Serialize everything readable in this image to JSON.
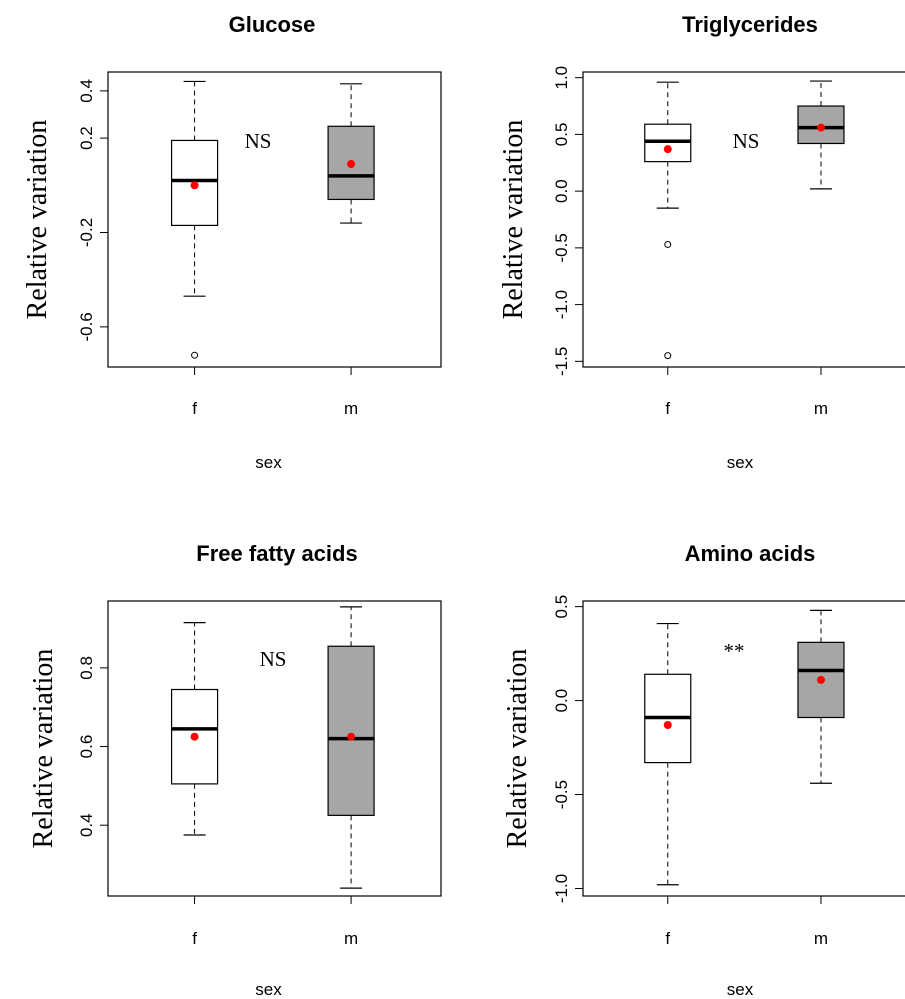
{
  "chart_data": [
    {
      "type": "box",
      "title": "Glucose",
      "xlabel": "sex",
      "ylabel": "Relative variation",
      "categories": [
        "f",
        "m"
      ],
      "ylim": [
        -0.77,
        0.48
      ],
      "yticks": [
        -0.6,
        -0.2,
        0.2,
        0.4
      ],
      "ytick_labels": [
        "-0.6",
        "-0.2",
        "0.2",
        "0.4"
      ],
      "boxes": [
        {
          "group": "f",
          "whisker_low": -0.47,
          "q1": -0.17,
          "median": 0.02,
          "q3": 0.19,
          "whisker_high": 0.44,
          "mean": 0.0,
          "outliers": [
            -0.72
          ],
          "fill": "#ffffff"
        },
        {
          "group": "m",
          "whisker_low": -0.16,
          "q1": -0.06,
          "median": 0.04,
          "q3": 0.25,
          "whisker_high": 0.43,
          "mean": 0.09,
          "outliers": [],
          "fill": "#a6a6a6"
        }
      ],
      "annotation": "NS",
      "mean_color": "#ff0000"
    },
    {
      "type": "box",
      "title": "Triglycerides",
      "xlabel": "sex",
      "ylabel": "Relative variation",
      "categories": [
        "f",
        "m"
      ],
      "ylim": [
        -1.55,
        1.05
      ],
      "yticks": [
        -1.5,
        -1.0,
        -0.5,
        0.0,
        0.5,
        1.0
      ],
      "ytick_labels": [
        "-1.5",
        "-1.0",
        "-0.5",
        "0.0",
        "0.5",
        "1.0"
      ],
      "boxes": [
        {
          "group": "f",
          "whisker_low": -0.15,
          "q1": 0.26,
          "median": 0.44,
          "q3": 0.59,
          "whisker_high": 0.96,
          "mean": 0.37,
          "outliers": [
            -0.47,
            -1.45
          ],
          "fill": "#ffffff"
        },
        {
          "group": "m",
          "whisker_low": 0.02,
          "q1": 0.42,
          "median": 0.56,
          "q3": 0.75,
          "whisker_high": 0.97,
          "mean": 0.56,
          "outliers": [],
          "fill": "#a6a6a6"
        }
      ],
      "annotation": "NS",
      "mean_color": "#ff0000"
    },
    {
      "type": "box",
      "title": "Free fatty acids",
      "xlabel": "sex",
      "ylabel": "Relative variation",
      "categories": [
        "f",
        "m"
      ],
      "ylim": [
        0.22,
        0.97
      ],
      "yticks": [
        0.4,
        0.6,
        0.8
      ],
      "ytick_labels": [
        "0.4",
        "0.6",
        "0.8"
      ],
      "boxes": [
        {
          "group": "f",
          "whisker_low": 0.375,
          "q1": 0.505,
          "median": 0.645,
          "q3": 0.745,
          "whisker_high": 0.915,
          "mean": 0.625,
          "outliers": [],
          "fill": "#ffffff"
        },
        {
          "group": "m",
          "whisker_low": 0.24,
          "q1": 0.425,
          "median": 0.62,
          "q3": 0.855,
          "whisker_high": 0.955,
          "mean": 0.625,
          "outliers": [],
          "fill": "#a6a6a6"
        }
      ],
      "annotation": "NS",
      "mean_color": "#ff0000"
    },
    {
      "type": "box",
      "title": "Amino acids",
      "xlabel": "sex",
      "ylabel": "Relative variation",
      "categories": [
        "f",
        "m"
      ],
      "ylim": [
        -1.04,
        0.53
      ],
      "yticks": [
        -1.0,
        -0.5,
        0.0,
        0.5
      ],
      "ytick_labels": [
        "-1.0",
        "-0.5",
        "0.0",
        "0.5"
      ],
      "boxes": [
        {
          "group": "f",
          "whisker_low": -0.98,
          "q1": -0.33,
          "median": -0.09,
          "q3": 0.14,
          "whisker_high": 0.41,
          "mean": -0.13,
          "outliers": [],
          "fill": "#ffffff"
        },
        {
          "group": "m",
          "whisker_low": -0.44,
          "q1": -0.09,
          "median": 0.16,
          "q3": 0.31,
          "whisker_high": 0.48,
          "mean": 0.11,
          "outliers": [],
          "fill": "#a6a6a6"
        }
      ],
      "annotation": "**",
      "mean_color": "#ff0000"
    }
  ]
}
